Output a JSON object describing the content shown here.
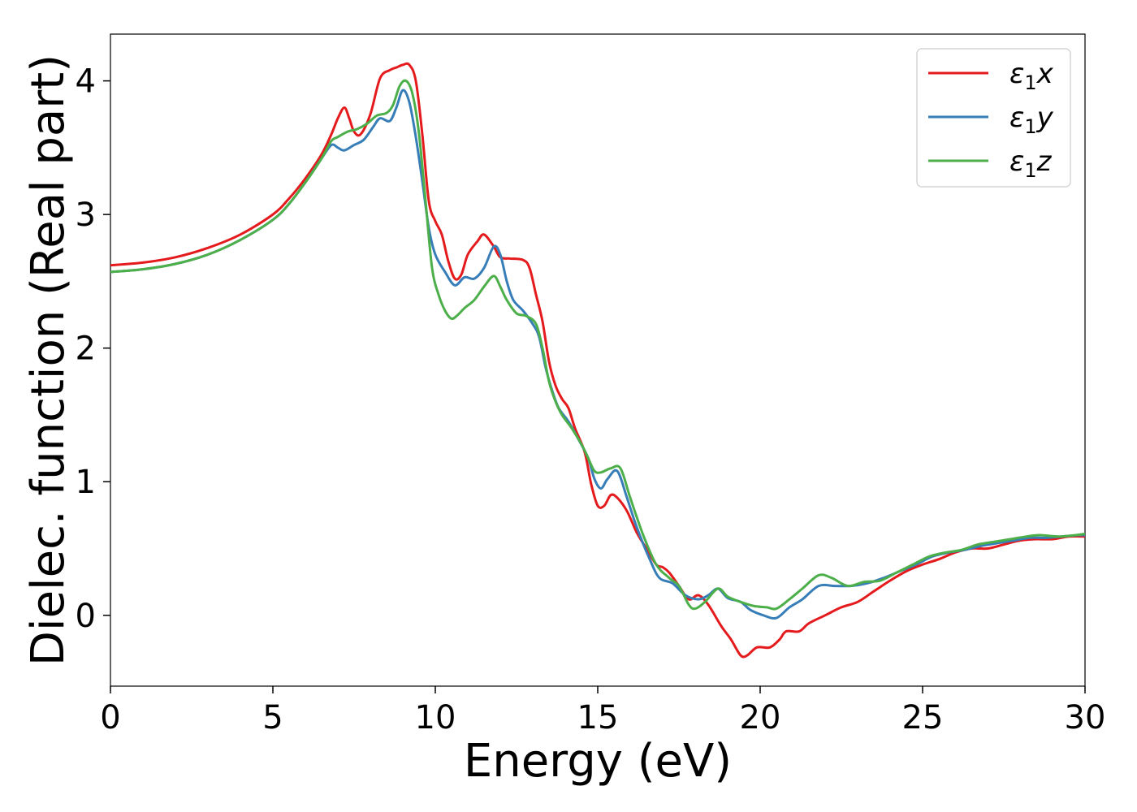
{
  "chart_data": {
    "type": "line",
    "title": "",
    "xlabel": "Energy (eV)",
    "ylabel": "Dielec. function (Real part)",
    "xlim": [
      0,
      30
    ],
    "ylim": [
      -0.53,
      4.35
    ],
    "xticks": [
      0,
      5,
      10,
      15,
      20,
      25,
      30
    ],
    "yticks": [
      0,
      1,
      2,
      3,
      4
    ],
    "grid": false,
    "legend_position": "top-right",
    "series": [
      {
        "name": "ε₁x",
        "legend_base": "ε",
        "legend_sub": "1",
        "legend_suffix": "x",
        "color": "#e41a1c",
        "points": [
          [
            0,
            2.62
          ],
          [
            1,
            2.64
          ],
          [
            2,
            2.68
          ],
          [
            3,
            2.75
          ],
          [
            4,
            2.85
          ],
          [
            5,
            3.0
          ],
          [
            5.5,
            3.12
          ],
          [
            6,
            3.27
          ],
          [
            6.5,
            3.45
          ],
          [
            6.8,
            3.6
          ],
          [
            7.0,
            3.72
          ],
          [
            7.2,
            3.8
          ],
          [
            7.35,
            3.72
          ],
          [
            7.5,
            3.62
          ],
          [
            7.7,
            3.6
          ],
          [
            8.0,
            3.75
          ],
          [
            8.3,
            4.02
          ],
          [
            8.6,
            4.08
          ],
          [
            8.8,
            4.1
          ],
          [
            9.0,
            4.12
          ],
          [
            9.2,
            4.12
          ],
          [
            9.4,
            4.0
          ],
          [
            9.6,
            3.6
          ],
          [
            9.8,
            3.1
          ],
          [
            10.0,
            2.95
          ],
          [
            10.2,
            2.85
          ],
          [
            10.4,
            2.65
          ],
          [
            10.6,
            2.52
          ],
          [
            10.8,
            2.55
          ],
          [
            11.0,
            2.7
          ],
          [
            11.3,
            2.8
          ],
          [
            11.5,
            2.85
          ],
          [
            11.8,
            2.76
          ],
          [
            12.0,
            2.68
          ],
          [
            12.3,
            2.67
          ],
          [
            12.7,
            2.66
          ],
          [
            12.9,
            2.6
          ],
          [
            13.1,
            2.4
          ],
          [
            13.3,
            2.2
          ],
          [
            13.5,
            1.9
          ],
          [
            13.7,
            1.72
          ],
          [
            13.9,
            1.62
          ],
          [
            14.1,
            1.55
          ],
          [
            14.3,
            1.4
          ],
          [
            14.6,
            1.22
          ],
          [
            14.8,
            0.98
          ],
          [
            15.0,
            0.82
          ],
          [
            15.2,
            0.82
          ],
          [
            15.4,
            0.9
          ],
          [
            15.6,
            0.88
          ],
          [
            15.9,
            0.78
          ],
          [
            16.2,
            0.62
          ],
          [
            16.5,
            0.5
          ],
          [
            16.8,
            0.38
          ],
          [
            17.0,
            0.36
          ],
          [
            17.2,
            0.32
          ],
          [
            17.5,
            0.22
          ],
          [
            17.8,
            0.12
          ],
          [
            18.1,
            0.15
          ],
          [
            18.4,
            0.08
          ],
          [
            18.8,
            -0.08
          ],
          [
            19.1,
            -0.18
          ],
          [
            19.4,
            -0.3
          ],
          [
            19.6,
            -0.3
          ],
          [
            19.9,
            -0.24
          ],
          [
            20.3,
            -0.24
          ],
          [
            20.6,
            -0.18
          ],
          [
            20.8,
            -0.12
          ],
          [
            21.2,
            -0.12
          ],
          [
            21.5,
            -0.06
          ],
          [
            22.0,
            0.0
          ],
          [
            22.5,
            0.06
          ],
          [
            23.0,
            0.1
          ],
          [
            23.5,
            0.18
          ],
          [
            24.0,
            0.26
          ],
          [
            24.5,
            0.33
          ],
          [
            25.0,
            0.38
          ],
          [
            25.5,
            0.42
          ],
          [
            26.0,
            0.47
          ],
          [
            26.5,
            0.5
          ],
          [
            27.0,
            0.5
          ],
          [
            27.5,
            0.53
          ],
          [
            28.0,
            0.56
          ],
          [
            28.5,
            0.57
          ],
          [
            29.0,
            0.57
          ],
          [
            29.5,
            0.59
          ],
          [
            30.0,
            0.59
          ]
        ]
      },
      {
        "name": "ε₁y",
        "legend_base": "ε",
        "legend_sub": "1",
        "legend_suffix": "y",
        "color": "#377eb8",
        "points": [
          [
            0,
            2.57
          ],
          [
            1,
            2.59
          ],
          [
            2,
            2.63
          ],
          [
            3,
            2.7
          ],
          [
            4,
            2.81
          ],
          [
            5,
            2.96
          ],
          [
            5.5,
            3.08
          ],
          [
            6,
            3.24
          ],
          [
            6.5,
            3.42
          ],
          [
            6.8,
            3.52
          ],
          [
            7.0,
            3.5
          ],
          [
            7.2,
            3.48
          ],
          [
            7.5,
            3.52
          ],
          [
            7.8,
            3.56
          ],
          [
            8.1,
            3.66
          ],
          [
            8.3,
            3.72
          ],
          [
            8.6,
            3.7
          ],
          [
            8.8,
            3.8
          ],
          [
            9.0,
            3.93
          ],
          [
            9.2,
            3.84
          ],
          [
            9.4,
            3.58
          ],
          [
            9.6,
            3.25
          ],
          [
            9.8,
            2.9
          ],
          [
            10.0,
            2.7
          ],
          [
            10.3,
            2.57
          ],
          [
            10.6,
            2.47
          ],
          [
            10.9,
            2.53
          ],
          [
            11.2,
            2.52
          ],
          [
            11.5,
            2.6
          ],
          [
            11.8,
            2.76
          ],
          [
            12.0,
            2.7
          ],
          [
            12.2,
            2.5
          ],
          [
            12.4,
            2.36
          ],
          [
            12.7,
            2.28
          ],
          [
            13.0,
            2.18
          ],
          [
            13.2,
            2.08
          ],
          [
            13.4,
            1.85
          ],
          [
            13.6,
            1.68
          ],
          [
            13.8,
            1.55
          ],
          [
            14.1,
            1.45
          ],
          [
            14.4,
            1.32
          ],
          [
            14.7,
            1.18
          ],
          [
            14.9,
            1.02
          ],
          [
            15.1,
            0.95
          ],
          [
            15.3,
            1.02
          ],
          [
            15.6,
            1.08
          ],
          [
            15.9,
            0.88
          ],
          [
            16.2,
            0.66
          ],
          [
            16.6,
            0.42
          ],
          [
            16.9,
            0.28
          ],
          [
            17.3,
            0.24
          ],
          [
            17.7,
            0.15
          ],
          [
            18.1,
            0.12
          ],
          [
            18.4,
            0.15
          ],
          [
            18.7,
            0.2
          ],
          [
            19.0,
            0.13
          ],
          [
            19.4,
            0.1
          ],
          [
            19.7,
            0.04
          ],
          [
            20.1,
            0.0
          ],
          [
            20.5,
            -0.02
          ],
          [
            20.9,
            0.06
          ],
          [
            21.3,
            0.12
          ],
          [
            21.8,
            0.22
          ],
          [
            22.3,
            0.22
          ],
          [
            22.8,
            0.22
          ],
          [
            23.3,
            0.24
          ],
          [
            23.8,
            0.28
          ],
          [
            24.3,
            0.33
          ],
          [
            24.8,
            0.38
          ],
          [
            25.3,
            0.44
          ],
          [
            25.8,
            0.47
          ],
          [
            26.3,
            0.49
          ],
          [
            26.8,
            0.52
          ],
          [
            27.3,
            0.54
          ],
          [
            27.8,
            0.56
          ],
          [
            28.3,
            0.58
          ],
          [
            28.8,
            0.58
          ],
          [
            29.3,
            0.59
          ],
          [
            29.8,
            0.6
          ],
          [
            30.0,
            0.6
          ]
        ]
      },
      {
        "name": "ε₁z",
        "legend_base": "ε",
        "legend_sub": "1",
        "legend_suffix": "z",
        "color": "#4daf4a",
        "points": [
          [
            0,
            2.57
          ],
          [
            1,
            2.59
          ],
          [
            2,
            2.63
          ],
          [
            3,
            2.7
          ],
          [
            4,
            2.81
          ],
          [
            5,
            2.96
          ],
          [
            5.5,
            3.08
          ],
          [
            6,
            3.24
          ],
          [
            6.5,
            3.42
          ],
          [
            6.8,
            3.55
          ],
          [
            7.0,
            3.58
          ],
          [
            7.3,
            3.62
          ],
          [
            7.6,
            3.64
          ],
          [
            7.9,
            3.68
          ],
          [
            8.2,
            3.74
          ],
          [
            8.5,
            3.76
          ],
          [
            8.7,
            3.82
          ],
          [
            8.9,
            3.96
          ],
          [
            9.1,
            4.0
          ],
          [
            9.3,
            3.9
          ],
          [
            9.5,
            3.6
          ],
          [
            9.7,
            3.1
          ],
          [
            9.9,
            2.6
          ],
          [
            10.1,
            2.4
          ],
          [
            10.3,
            2.28
          ],
          [
            10.5,
            2.22
          ],
          [
            10.7,
            2.25
          ],
          [
            10.9,
            2.3
          ],
          [
            11.2,
            2.36
          ],
          [
            11.5,
            2.46
          ],
          [
            11.8,
            2.54
          ],
          [
            12.0,
            2.46
          ],
          [
            12.2,
            2.36
          ],
          [
            12.5,
            2.26
          ],
          [
            12.8,
            2.24
          ],
          [
            13.1,
            2.18
          ],
          [
            13.3,
            2.0
          ],
          [
            13.5,
            1.75
          ],
          [
            13.7,
            1.6
          ],
          [
            13.9,
            1.5
          ],
          [
            14.2,
            1.4
          ],
          [
            14.5,
            1.28
          ],
          [
            14.7,
            1.18
          ],
          [
            14.9,
            1.08
          ],
          [
            15.1,
            1.07
          ],
          [
            15.4,
            1.1
          ],
          [
            15.7,
            1.1
          ],
          [
            16.0,
            0.88
          ],
          [
            16.4,
            0.6
          ],
          [
            16.8,
            0.38
          ],
          [
            17.2,
            0.28
          ],
          [
            17.5,
            0.22
          ],
          [
            17.8,
            0.08
          ],
          [
            18.0,
            0.05
          ],
          [
            18.3,
            0.1
          ],
          [
            18.7,
            0.2
          ],
          [
            19.0,
            0.14
          ],
          [
            19.4,
            0.1
          ],
          [
            19.8,
            0.07
          ],
          [
            20.2,
            0.06
          ],
          [
            20.5,
            0.05
          ],
          [
            20.9,
            0.12
          ],
          [
            21.3,
            0.2
          ],
          [
            21.8,
            0.3
          ],
          [
            22.2,
            0.28
          ],
          [
            22.7,
            0.22
          ],
          [
            23.2,
            0.25
          ],
          [
            23.7,
            0.26
          ],
          [
            24.2,
            0.32
          ],
          [
            24.7,
            0.38
          ],
          [
            25.2,
            0.44
          ],
          [
            25.7,
            0.47
          ],
          [
            26.2,
            0.49
          ],
          [
            26.7,
            0.53
          ],
          [
            27.2,
            0.55
          ],
          [
            27.7,
            0.57
          ],
          [
            28.2,
            0.59
          ],
          [
            28.6,
            0.6
          ],
          [
            29.2,
            0.59
          ],
          [
            29.7,
            0.6
          ],
          [
            30.0,
            0.61
          ]
        ]
      }
    ]
  }
}
